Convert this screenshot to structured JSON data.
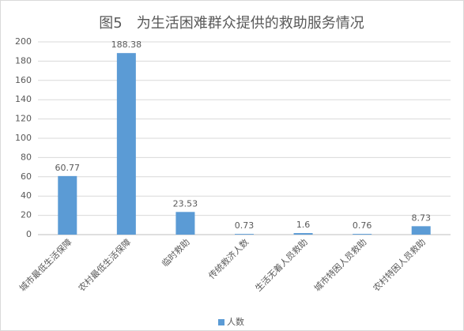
{
  "chart_data": {
    "type": "bar",
    "title": "图5　为生活困难群众提供的救助服务情况",
    "categories": [
      "城市最低生活保障",
      "农村最低生活保障",
      "临时救助",
      "传统救济人数",
      "生活无着人员救助",
      "城市特困人员救助",
      "农村特困人员救助"
    ],
    "series": [
      {
        "name": "人数",
        "color": "#5b9bd5",
        "values": [
          60.77,
          188.38,
          23.53,
          0.73,
          1.6,
          0.76,
          8.73
        ]
      }
    ],
    "ylim": [
      0,
      200
    ],
    "yticks": [
      0,
      20,
      40,
      60,
      80,
      100,
      120,
      140,
      160,
      180,
      200
    ],
    "grid": true,
    "legend": "bottom"
  }
}
